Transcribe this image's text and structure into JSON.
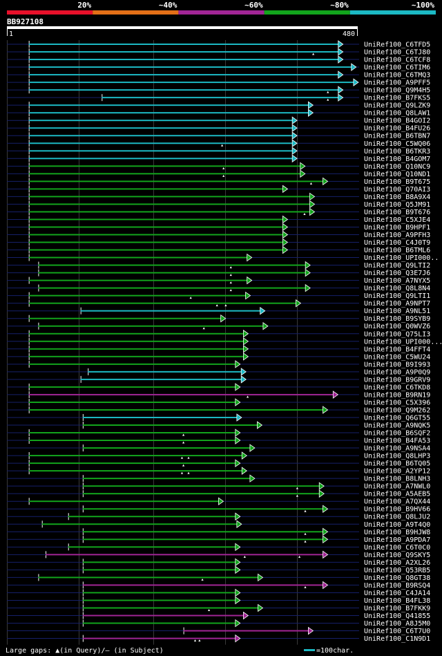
{
  "chart_data": {
    "type": "alignment-overview",
    "query_name": "BB927108",
    "query_start": "1",
    "query_end": "480",
    "identity_legend": [
      {
        "label": "20%",
        "color": "#e8102a"
      },
      {
        "label": "~40%",
        "color": "#e36f17"
      },
      {
        "label": "~60%",
        "color": "#a12595"
      },
      {
        "label": "~80%",
        "color": "#12a51c"
      },
      {
        "label": "~100%",
        "color": "#1cb9c4"
      }
    ],
    "hits": [
      {
        "name": "UniRef100_C6TFD5",
        "start": 30,
        "end": 457,
        "cls": 4,
        "gaps": []
      },
      {
        "name": "UniRef100_C6TJ80",
        "start": 30,
        "end": 457,
        "cls": 4,
        "gaps": [
          420
        ]
      },
      {
        "name": "UniRef100_C6TCF8",
        "start": 30,
        "end": 457,
        "cls": 4,
        "gaps": []
      },
      {
        "name": "UniRef100_C6TIM6",
        "start": 30,
        "end": 475,
        "cls": 4,
        "gaps": []
      },
      {
        "name": "UniRef100_C6TMQ3",
        "start": 30,
        "end": 457,
        "cls": 4,
        "gaps": []
      },
      {
        "name": "UniRef100_A9PFF5",
        "start": 30,
        "end": 478,
        "cls": 4,
        "gaps": []
      },
      {
        "name": "UniRef100_Q9M4H5",
        "start": 30,
        "end": 457,
        "cls": 4,
        "gaps": [
          440
        ]
      },
      {
        "name": "UniRef100_B7FKS5",
        "start": 130,
        "end": 457,
        "cls": 4,
        "gaps": [
          440
        ]
      },
      {
        "name": "UniRef100_Q9LZK9",
        "start": 30,
        "end": 416,
        "cls": 4,
        "gaps": []
      },
      {
        "name": "UniRef100_Q8LAW1",
        "start": 30,
        "end": 416,
        "cls": 4,
        "gaps": []
      },
      {
        "name": "UniRef100_B4GOI2",
        "start": 30,
        "end": 394,
        "cls": 4,
        "gaps": []
      },
      {
        "name": "UniRef100_B4FU26",
        "start": 30,
        "end": 394,
        "cls": 4,
        "gaps": []
      },
      {
        "name": "UniRef100_B6TBN7",
        "start": 30,
        "end": 394,
        "cls": 4,
        "gaps": []
      },
      {
        "name": "UniRef100_C5WQ06",
        "start": 30,
        "end": 394,
        "cls": 4,
        "gaps": [
          295
        ]
      },
      {
        "name": "UniRef100_B6TKR3",
        "start": 30,
        "end": 394,
        "cls": 4,
        "gaps": []
      },
      {
        "name": "UniRef100_B4GOM7",
        "start": 30,
        "end": 394,
        "cls": 4,
        "gaps": []
      },
      {
        "name": "UniRef100_Q10NC9",
        "start": 30,
        "end": 405,
        "cls": 3,
        "gaps": [
          297
        ]
      },
      {
        "name": "UniRef100_Q10ND1",
        "start": 30,
        "end": 405,
        "cls": 3,
        "gaps": [
          297
        ]
      },
      {
        "name": "UniRef100_B9T675",
        "start": 30,
        "end": 436,
        "cls": 3,
        "gaps": [
          417
        ]
      },
      {
        "name": "UniRef100_Q70AI3",
        "start": 30,
        "end": 381,
        "cls": 3,
        "gaps": []
      },
      {
        "name": "UniRef100_B8A9X4",
        "start": 30,
        "end": 418,
        "cls": 3,
        "gaps": []
      },
      {
        "name": "UniRef100_Q5JM91",
        "start": 30,
        "end": 418,
        "cls": 3,
        "gaps": []
      },
      {
        "name": "UniRef100_B9T676",
        "start": 30,
        "end": 418,
        "cls": 3,
        "gaps": [
          408
        ]
      },
      {
        "name": "UniRef100_C5XJE4",
        "start": 30,
        "end": 381,
        "cls": 3,
        "gaps": []
      },
      {
        "name": "UniRef100_B9HPF1",
        "start": 30,
        "end": 381,
        "cls": 3,
        "gaps": []
      },
      {
        "name": "UniRef100_A9PFH3",
        "start": 30,
        "end": 381,
        "cls": 3,
        "gaps": []
      },
      {
        "name": "UniRef100_C4J0T9",
        "start": 30,
        "end": 381,
        "cls": 3,
        "gaps": []
      },
      {
        "name": "UniRef100_B6TML6",
        "start": 30,
        "end": 381,
        "cls": 3,
        "gaps": []
      },
      {
        "name": "UniRef100_UPI000..",
        "start": 30,
        "end": 332,
        "cls": 3,
        "gaps": []
      },
      {
        "name": "UniRef100_Q9LTI2",
        "start": 43,
        "end": 412,
        "cls": 3,
        "gaps": [
          307
        ]
      },
      {
        "name": "UniRef100_Q3E7J6",
        "start": 43,
        "end": 412,
        "cls": 3,
        "gaps": [
          307
        ]
      },
      {
        "name": "UniRef100_A7NYX5",
        "start": 30,
        "end": 332,
        "cls": 3,
        "gaps": [
          307
        ]
      },
      {
        "name": "UniRef100_Q8L8N4",
        "start": 43,
        "end": 412,
        "cls": 3,
        "gaps": [
          307
        ]
      },
      {
        "name": "UniRef100_Q9LTI1",
        "start": 30,
        "end": 330,
        "cls": 3,
        "gaps": [
          252
        ]
      },
      {
        "name": "UniRef100_A9NPT7",
        "start": 30,
        "end": 399,
        "cls": 3,
        "gaps": [
          288,
          300
        ]
      },
      {
        "name": "UniRef100_A9NL51",
        "start": 101,
        "end": 350,
        "cls": 4,
        "gaps": []
      },
      {
        "name": "UniRef100_B9SYB9",
        "start": 30,
        "end": 296,
        "cls": 3,
        "gaps": []
      },
      {
        "name": "UniRef100_Q0WVZ6",
        "start": 43,
        "end": 354,
        "cls": 3,
        "gaps": [
          270
        ]
      },
      {
        "name": "UniRef100_Q75LI3",
        "start": 30,
        "end": 327,
        "cls": 3,
        "gaps": []
      },
      {
        "name": "UniRef100_UPI000...",
        "start": 30,
        "end": 327,
        "cls": 3,
        "gaps": []
      },
      {
        "name": "UniRef100_B4FFT4",
        "start": 30,
        "end": 327,
        "cls": 3,
        "gaps": []
      },
      {
        "name": "UniRef100_C5WU24",
        "start": 30,
        "end": 327,
        "cls": 3,
        "gaps": []
      },
      {
        "name": "UniRef100_B9I993",
        "start": 30,
        "end": 316,
        "cls": 3,
        "gaps": []
      },
      {
        "name": "UniRef100_A9P0Q9",
        "start": 111,
        "end": 324,
        "cls": 4,
        "gaps": []
      },
      {
        "name": "UniRef100_B9GRV9",
        "start": 101,
        "end": 324,
        "cls": 4,
        "gaps": []
      },
      {
        "name": "UniRef100_C6TKD8",
        "start": 30,
        "end": 316,
        "cls": 3,
        "gaps": []
      },
      {
        "name": "UniRef100_B9RN19",
        "start": 30,
        "end": 450,
        "cls": 2,
        "gaps": [
          330
        ]
      },
      {
        "name": "UniRef100_C5X396",
        "start": 30,
        "end": 316,
        "cls": 3,
        "gaps": []
      },
      {
        "name": "UniRef100_Q9M262",
        "start": 30,
        "end": 436,
        "cls": 3,
        "gaps": []
      },
      {
        "name": "UniRef100_Q6GT55",
        "start": 104,
        "end": 318,
        "cls": 4,
        "gaps": []
      },
      {
        "name": "UniRef100_A9NQK5",
        "start": 104,
        "end": 346,
        "cls": 3,
        "gaps": []
      },
      {
        "name": "UniRef100_B6SQF2",
        "start": 30,
        "end": 316,
        "cls": 3,
        "gaps": [
          242
        ]
      },
      {
        "name": "UniRef100_B4FA53",
        "start": 30,
        "end": 316,
        "cls": 3,
        "gaps": [
          242
        ]
      },
      {
        "name": "UniRef100_A9NSA4",
        "start": 104,
        "end": 336,
        "cls": 3,
        "gaps": []
      },
      {
        "name": "UniRef100_Q8LHP3",
        "start": 30,
        "end": 325,
        "cls": 3,
        "gaps": [
          240,
          249
        ]
      },
      {
        "name": "UniRef100_B6TQ05",
        "start": 30,
        "end": 316,
        "cls": 3,
        "gaps": [
          242
        ]
      },
      {
        "name": "UniRef100_A2YP12",
        "start": 30,
        "end": 325,
        "cls": 3,
        "gaps": [
          240,
          249
        ]
      },
      {
        "name": "UniRef100_B8LNH3",
        "start": 104,
        "end": 336,
        "cls": 3,
        "gaps": []
      },
      {
        "name": "UniRef100_A7NWL0",
        "start": 104,
        "end": 431,
        "cls": 3,
        "gaps": [
          398
        ]
      },
      {
        "name": "UniRef100_A5AEB5",
        "start": 104,
        "end": 431,
        "cls": 3,
        "gaps": [
          398
        ]
      },
      {
        "name": "UniRef100_A7QX44",
        "start": 30,
        "end": 293,
        "cls": 3,
        "gaps": []
      },
      {
        "name": "UniRef100_B9HV66",
        "start": 104,
        "end": 436,
        "cls": 3,
        "gaps": [
          409
        ]
      },
      {
        "name": "UniRef100_Q8LJU2",
        "start": 84,
        "end": 316,
        "cls": 3,
        "gaps": []
      },
      {
        "name": "UniRef100_A9T4Q0",
        "start": 48,
        "end": 318,
        "cls": 3,
        "gaps": []
      },
      {
        "name": "UniRef100_B9HJW8",
        "start": 104,
        "end": 436,
        "cls": 3,
        "gaps": [
          409
        ]
      },
      {
        "name": "UniRef100_A9PDA7",
        "start": 104,
        "end": 436,
        "cls": 3,
        "gaps": [
          409
        ]
      },
      {
        "name": "UniRef100_C6T0C0",
        "start": 84,
        "end": 316,
        "cls": 3,
        "gaps": []
      },
      {
        "name": "UniRef100_Q9SKY5",
        "start": 53,
        "end": 436,
        "cls": 2,
        "gaps": [
          326,
          401
        ]
      },
      {
        "name": "UniRef100_A2XL26",
        "start": 104,
        "end": 316,
        "cls": 3,
        "gaps": []
      },
      {
        "name": "UniRef100_Q53RB5",
        "start": 104,
        "end": 316,
        "cls": 3,
        "gaps": []
      },
      {
        "name": "UniRef100_Q8GT38",
        "start": 43,
        "end": 347,
        "cls": 3,
        "gaps": [
          268
        ]
      },
      {
        "name": "UniRef100_B9RSQ4",
        "start": 104,
        "end": 436,
        "cls": 2,
        "gaps": [
          409
        ]
      },
      {
        "name": "UniRef100_C4JA14",
        "start": 104,
        "end": 316,
        "cls": 3,
        "gaps": []
      },
      {
        "name": "UniRef100_B4FL38",
        "start": 104,
        "end": 316,
        "cls": 3,
        "gaps": []
      },
      {
        "name": "UniRef100_B7FKK9",
        "start": 104,
        "end": 347,
        "cls": 3,
        "gaps": [
          277
        ]
      },
      {
        "name": "UniRef100_Q41855",
        "start": 104,
        "end": 327,
        "cls": 2,
        "gaps": []
      },
      {
        "name": "UniRef100_A8J5M0",
        "start": 104,
        "end": 316,
        "cls": 3,
        "gaps": []
      },
      {
        "name": "UniRef100_C6T7U0",
        "start": 242,
        "end": 416,
        "cls": 2,
        "gaps": []
      },
      {
        "name": "UniRef100_C1N9D1",
        "start": 104,
        "end": 316,
        "cls": 2,
        "gaps": [
          258,
          264
        ]
      }
    ],
    "footer_left": "Large gaps: ▲(in Query)/– (in Subject)",
    "footer_right": "=100char."
  }
}
